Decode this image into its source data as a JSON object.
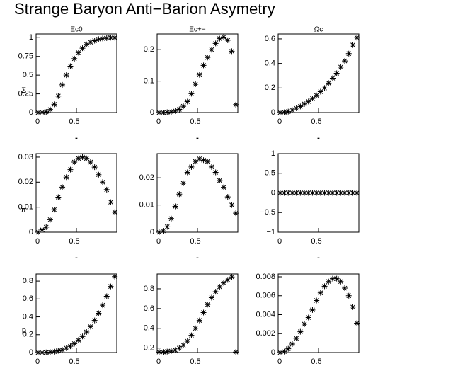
{
  "title": "Strange Baryon Anti−Barion Asymetry",
  "chart_data": [
    {
      "type": "scatter",
      "title": "Ξc0",
      "ylabel": "Σ",
      "xlabel": "-",
      "x": [
        0.025,
        0.075,
        0.125,
        0.175,
        0.225,
        0.275,
        0.325,
        0.375,
        0.425,
        0.475,
        0.525,
        0.575,
        0.625,
        0.675,
        0.725,
        0.775,
        0.825,
        0.875,
        0.925,
        0.975
      ],
      "values": [
        0,
        0.002,
        0.01,
        0.04,
        0.11,
        0.22,
        0.37,
        0.5,
        0.62,
        0.72,
        0.8,
        0.86,
        0.91,
        0.94,
        0.96,
        0.98,
        0.99,
        0.995,
        1.0,
        1.0
      ],
      "xlim": [
        0,
        1
      ],
      "xticks": [
        0,
        0.5
      ],
      "ylim": [
        0,
        1.05
      ],
      "yticks": [
        0,
        0.25,
        0.5,
        0.75,
        1
      ]
    },
    {
      "type": "scatter",
      "title": "Ξc+−",
      "xlabel": "-",
      "x": [
        0.025,
        0.075,
        0.125,
        0.175,
        0.225,
        0.275,
        0.325,
        0.375,
        0.425,
        0.475,
        0.525,
        0.575,
        0.625,
        0.675,
        0.725,
        0.775,
        0.825,
        0.875,
        0.925,
        0.975
      ],
      "values": [
        0,
        0,
        0.001,
        0.002,
        0.005,
        0.01,
        0.02,
        0.035,
        0.06,
        0.09,
        0.12,
        0.15,
        0.175,
        0.2,
        0.22,
        0.235,
        0.24,
        0.23,
        0.195,
        0.025
      ],
      "xlim": [
        0,
        1
      ],
      "xticks": [
        0,
        0.5
      ],
      "ylim": [
        0,
        0.25
      ],
      "yticks": [
        0,
        0.1,
        0.2
      ]
    },
    {
      "type": "scatter",
      "title": "Ωc",
      "xlabel": "-",
      "x": [
        0.025,
        0.075,
        0.125,
        0.175,
        0.225,
        0.275,
        0.325,
        0.375,
        0.425,
        0.475,
        0.525,
        0.575,
        0.625,
        0.675,
        0.725,
        0.775,
        0.825,
        0.875,
        0.925,
        0.975
      ],
      "values": [
        0,
        0.002,
        0.008,
        0.02,
        0.035,
        0.05,
        0.07,
        0.09,
        0.115,
        0.14,
        0.17,
        0.2,
        0.24,
        0.28,
        0.32,
        0.37,
        0.42,
        0.48,
        0.55,
        0.61
      ],
      "xlim": [
        0,
        1
      ],
      "xticks": [
        0,
        0.5
      ],
      "ylim": [
        0,
        0.64
      ],
      "yticks": [
        0,
        0.2,
        0.4,
        0.6
      ]
    },
    {
      "type": "scatter",
      "ylabel": "π",
      "xlabel": "-",
      "x": [
        0.025,
        0.075,
        0.125,
        0.175,
        0.225,
        0.275,
        0.325,
        0.375,
        0.425,
        0.475,
        0.525,
        0.575,
        0.625,
        0.675,
        0.725,
        0.775,
        0.825,
        0.875,
        0.925,
        0.975
      ],
      "values": [
        0,
        0.001,
        0.002,
        0.005,
        0.009,
        0.014,
        0.018,
        0.022,
        0.025,
        0.028,
        0.0295,
        0.03,
        0.0295,
        0.028,
        0.026,
        0.023,
        0.02,
        0.017,
        0.012,
        0.008
      ],
      "xlim": [
        0,
        1
      ],
      "xticks": [
        0,
        0.5
      ],
      "ylim": [
        0,
        0.0314
      ],
      "yticks": [
        0,
        0.01,
        0.02,
        0.03
      ]
    },
    {
      "type": "scatter",
      "xlabel": "-",
      "x": [
        0.025,
        0.075,
        0.125,
        0.175,
        0.225,
        0.275,
        0.325,
        0.375,
        0.425,
        0.475,
        0.525,
        0.575,
        0.625,
        0.675,
        0.725,
        0.775,
        0.825,
        0.875,
        0.925,
        0.975
      ],
      "values": [
        0,
        0.0005,
        0.002,
        0.005,
        0.0095,
        0.014,
        0.018,
        0.022,
        0.024,
        0.026,
        0.027,
        0.0265,
        0.026,
        0.024,
        0.022,
        0.019,
        0.0165,
        0.013,
        0.01,
        0.007
      ],
      "xlim": [
        0,
        1
      ],
      "xticks": [
        0,
        0.5
      ],
      "ylim": [
        0,
        0.0289
      ],
      "yticks": [
        0,
        0.01,
        0.02
      ]
    },
    {
      "type": "scatter",
      "xlabel": "-",
      "x": [
        0.025,
        0.075,
        0.125,
        0.175,
        0.225,
        0.275,
        0.325,
        0.375,
        0.425,
        0.475,
        0.525,
        0.575,
        0.625,
        0.675,
        0.725,
        0.775,
        0.825,
        0.875,
        0.925,
        0.975
      ],
      "values": [
        0,
        0,
        0,
        0,
        0,
        0,
        0,
        0,
        0,
        0,
        0,
        0,
        0,
        0,
        0,
        0,
        0,
        0,
        0,
        0
      ],
      "xlim": [
        0,
        1
      ],
      "xticks": [
        0,
        0.5
      ],
      "ylim": [
        -1,
        1
      ],
      "yticks": [
        {
          "value": -1,
          "label": "−1"
        },
        {
          "value": -0.5,
          "label": "−0.5"
        },
        0,
        0.5,
        1
      ]
    },
    {
      "type": "scatter",
      "ylabel": "p",
      "x": [
        0.025,
        0.075,
        0.125,
        0.175,
        0.225,
        0.275,
        0.325,
        0.375,
        0.425,
        0.475,
        0.525,
        0.575,
        0.625,
        0.675,
        0.725,
        0.775,
        0.825,
        0.875,
        0.925,
        0.975
      ],
      "values": [
        0,
        0,
        0.002,
        0.005,
        0.01,
        0.02,
        0.03,
        0.05,
        0.07,
        0.1,
        0.14,
        0.18,
        0.23,
        0.29,
        0.36,
        0.44,
        0.53,
        0.63,
        0.74,
        0.85
      ],
      "xlim": [
        0,
        1
      ],
      "xticks": [
        0,
        0.5
      ],
      "ylim": [
        0,
        0.88
      ],
      "yticks": [
        0,
        0.2,
        0.4,
        0.6,
        0.8
      ]
    },
    {
      "type": "scatter",
      "x": [
        0.025,
        0.075,
        0.125,
        0.175,
        0.225,
        0.275,
        0.325,
        0.375,
        0.425,
        0.475,
        0.525,
        0.575,
        0.625,
        0.675,
        0.725,
        0.775,
        0.825,
        0.875,
        0.925,
        0.975
      ],
      "values": [
        0.16,
        0.16,
        0.165,
        0.17,
        0.18,
        0.2,
        0.23,
        0.27,
        0.33,
        0.4,
        0.48,
        0.56,
        0.64,
        0.71,
        0.77,
        0.82,
        0.86,
        0.89,
        0.92,
        0.16
      ],
      "xlim": [
        0,
        1
      ],
      "xticks": [
        0,
        0.5
      ],
      "ylim": [
        0.155,
        0.95
      ],
      "yticks": [
        0.2,
        0.4,
        0.6,
        0.8
      ]
    },
    {
      "type": "scatter",
      "x": [
        0.025,
        0.075,
        0.125,
        0.175,
        0.225,
        0.275,
        0.325,
        0.375,
        0.425,
        0.475,
        0.525,
        0.575,
        0.625,
        0.675,
        0.725,
        0.775,
        0.825,
        0.875,
        0.925,
        0.975
      ],
      "values": [
        0,
        0.0001,
        0.0004,
        0.0009,
        0.0015,
        0.0022,
        0.003,
        0.0037,
        0.0045,
        0.0055,
        0.0063,
        0.007,
        0.0075,
        0.0078,
        0.0078,
        0.0075,
        0.0068,
        0.006,
        0.0048,
        0.0031
      ],
      "xlim": [
        0,
        1
      ],
      "xticks": [
        0,
        0.5
      ],
      "ylim": [
        0,
        0.0083
      ],
      "yticks": [
        0,
        0.002,
        0.004,
        0.006,
        0.008
      ]
    }
  ]
}
